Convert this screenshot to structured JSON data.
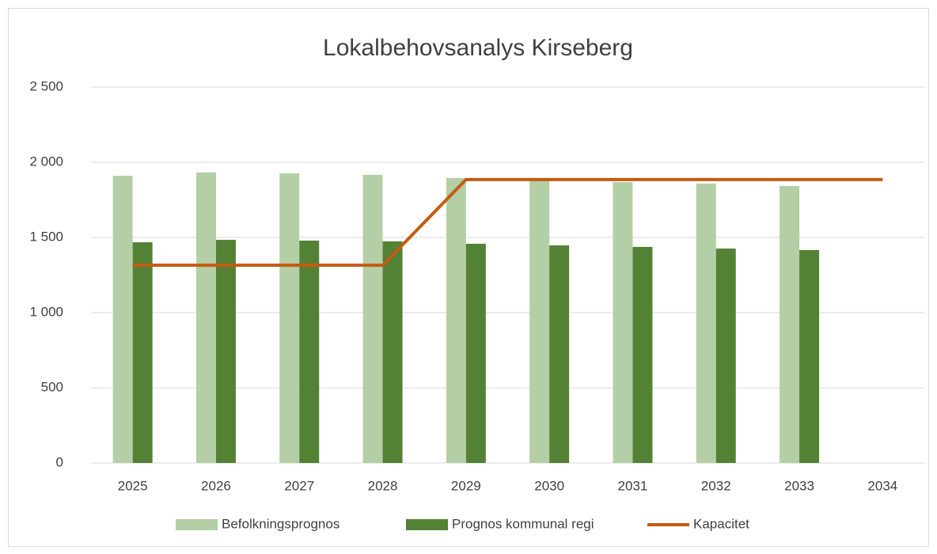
{
  "chart_data": {
    "type": "bar",
    "title": "Lokalbehovsanalys Kirseberg",
    "categories": [
      "2025",
      "2026",
      "2027",
      "2028",
      "2029",
      "2030",
      "2031",
      "2032",
      "2033",
      "2034"
    ],
    "series": [
      {
        "name": "Befolkningsprognos",
        "color": "#b4cfa6",
        "type": "bar",
        "values": [
          1910,
          1932,
          1926,
          1916,
          1895,
          1879,
          1868,
          1858,
          1842,
          null
        ]
      },
      {
        "name": "Prognos kommunal regi",
        "color": "#548235",
        "type": "bar",
        "values": [
          1468,
          1484,
          1479,
          1474,
          1458,
          1447,
          1437,
          1426,
          1416,
          null
        ]
      },
      {
        "name": "Kapacitet",
        "color": "#c55a11",
        "type": "line",
        "values": [
          1315,
          1315,
          1315,
          1315,
          1885,
          1885,
          1885,
          1885,
          1885,
          1885
        ]
      }
    ],
    "ylim": [
      0,
      2500
    ],
    "yticks": [
      0,
      500,
      {
        "value": 1000,
        "label": "1 000"
      },
      {
        "value": 1500,
        "label": "1 500"
      },
      {
        "value": 2000,
        "label": "2 000"
      },
      {
        "value": 2500,
        "label": "2 500"
      }
    ],
    "grid": true,
    "legend": "bottom"
  }
}
